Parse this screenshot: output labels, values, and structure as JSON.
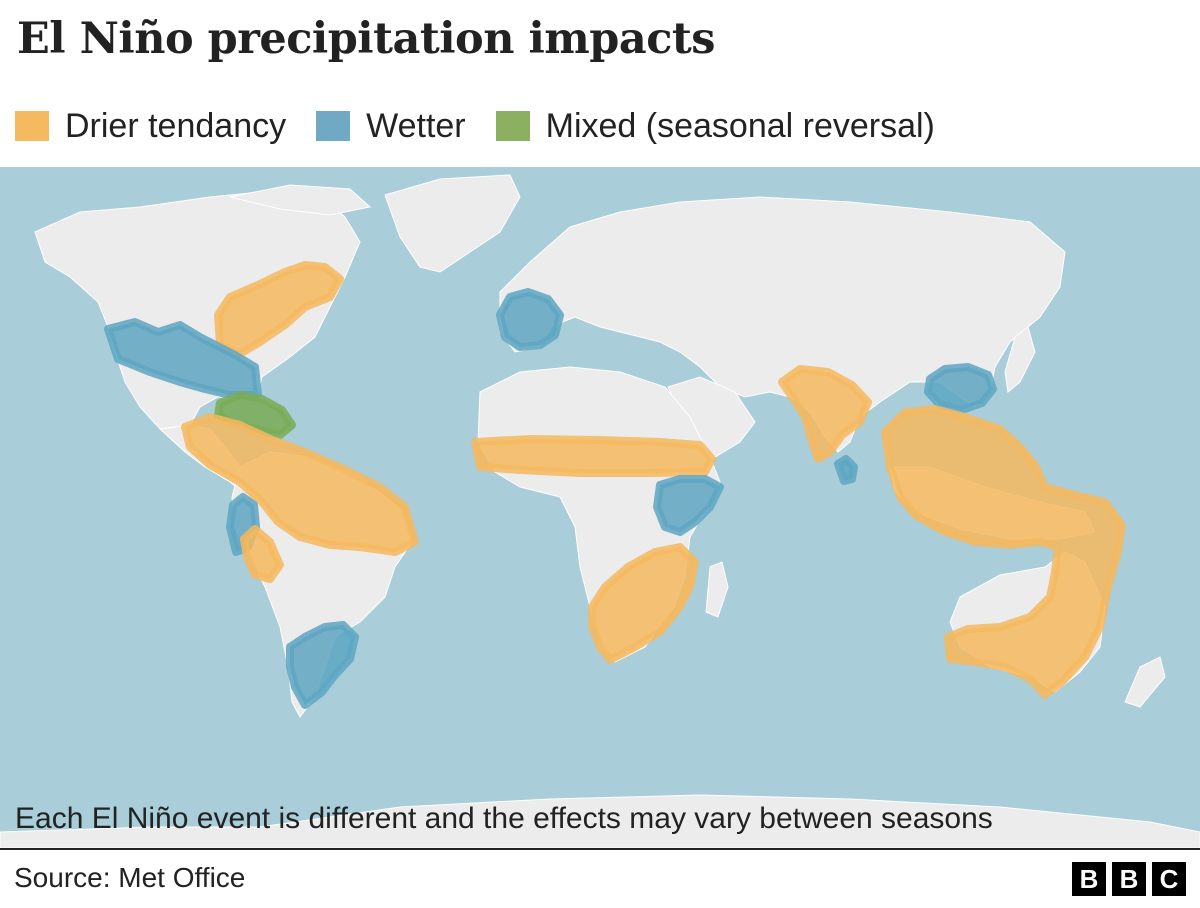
{
  "title": "El Niño precipitation impacts",
  "legend": [
    {
      "label": "Drier tendancy",
      "color": "#f5b95f",
      "key": "drier"
    },
    {
      "label": "Wetter",
      "color": "#6fa9c4",
      "key": "wetter"
    },
    {
      "label": "Mixed (seasonal reversal)",
      "color": "#8bb060",
      "key": "mixed"
    }
  ],
  "colors": {
    "ocean": "#a9cdd9",
    "land": "#ececec",
    "drier": "#f5b95f",
    "wetter": "#5ea6c2",
    "mixed": "#7aab55"
  },
  "regions": [
    {
      "name": "north-america-east",
      "category": "drier"
    },
    {
      "name": "us-south",
      "category": "wetter"
    },
    {
      "name": "caribbean",
      "category": "mixed"
    },
    {
      "name": "northern-south-america",
      "category": "drier"
    },
    {
      "name": "ecuador-peru-coast",
      "category": "wetter"
    },
    {
      "name": "bolivia-altiplano",
      "category": "drier"
    },
    {
      "name": "south-east-south-america",
      "category": "wetter"
    },
    {
      "name": "iberia",
      "category": "wetter"
    },
    {
      "name": "sahel",
      "category": "drier"
    },
    {
      "name": "east-africa",
      "category": "wetter"
    },
    {
      "name": "southern-africa",
      "category": "drier"
    },
    {
      "name": "india",
      "category": "drier"
    },
    {
      "name": "sri-lanka",
      "category": "wetter"
    },
    {
      "name": "south-china",
      "category": "wetter"
    },
    {
      "name": "maritime-continent-australia",
      "category": "drier"
    }
  ],
  "note": "Each El Niño event is different and the effects may vary between seasons",
  "source": "Source: Met Office",
  "logo": [
    "B",
    "B",
    "C"
  ]
}
